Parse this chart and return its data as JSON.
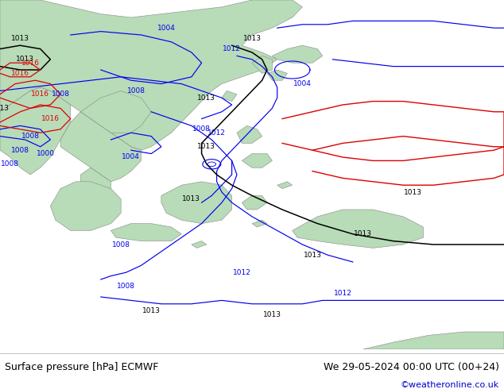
{
  "title_left": "Surface pressure [hPa] ECMWF",
  "title_right": "We 29-05-2024 00:00 UTC (00+24)",
  "credit": "©weatheronline.co.uk",
  "land_color": "#b8dbb8",
  "sea_color": "#d8d8d8",
  "isobar_blue": "#0000ee",
  "isobar_black": "#000000",
  "isobar_red": "#dd0000",
  "land_edge": "#888888",
  "label_fontsize": 6.5,
  "title_fontsize": 9,
  "credit_fontsize": 8,
  "figsize": [
    6.34,
    4.9
  ],
  "dpi": 100
}
